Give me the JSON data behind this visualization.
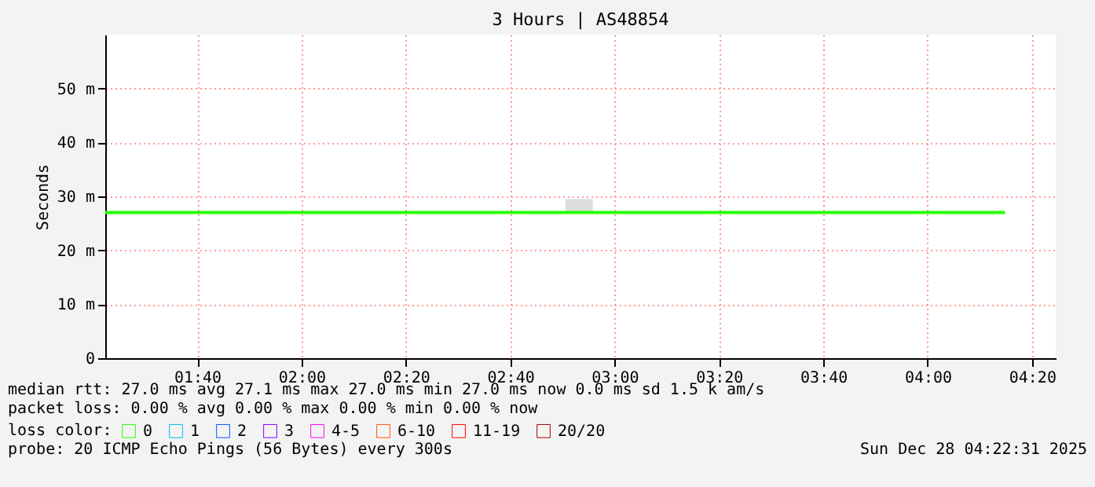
{
  "chart_data": {
    "type": "line",
    "title": "3 Hours | AS48854",
    "ylabel": "Seconds",
    "x": [
      1.373,
      2.843,
      2.93,
      4.247
    ],
    "xlim": [
      1.373,
      4.409
    ],
    "xticks": [
      {
        "value": 1.6667,
        "label": "01:40"
      },
      {
        "value": 2,
        "label": "02:00"
      },
      {
        "value": 2.3333,
        "label": "02:20"
      },
      {
        "value": 2.6667,
        "label": "02:40"
      },
      {
        "value": 3,
        "label": "03:00"
      },
      {
        "value": 3.3333,
        "label": "03:20"
      },
      {
        "value": 3.6667,
        "label": "03:40"
      },
      {
        "value": 4,
        "label": "04:00"
      },
      {
        "value": 4.3333,
        "label": "04:20"
      }
    ],
    "ylim": [
      0,
      60
    ],
    "yticks": [
      0,
      {
        "value": 10,
        "label": "10 m"
      },
      {
        "value": 20,
        "label": "20 m"
      },
      {
        "value": 30,
        "label": "30 m"
      },
      {
        "value": 40,
        "label": "40 m"
      },
      {
        "value": 50,
        "label": "50 m"
      }
    ],
    "legend_title": "loss color:",
    "legend": "bottom",
    "grid": true,
    "marker": "none",
    "line_style": "solid",
    "series": [
      {
        "name": "0",
        "color": "#26ff00",
        "values": [
          27,
          27,
          27,
          27
        ],
        "lower": [
          null,
          27,
          27,
          null
        ],
        "upper": [
          null,
          29.5,
          29.5,
          null
        ]
      },
      {
        "name": "1",
        "color": "#00b8ff",
        "values": [
          null,
          null,
          null,
          null
        ]
      },
      {
        "name": "2",
        "color": "#0059ff",
        "values": [
          null,
          null,
          null,
          null
        ]
      },
      {
        "name": "3",
        "color": "#7e00ff",
        "values": [
          null,
          null,
          null,
          null
        ]
      },
      {
        "name": "4-5",
        "color": "#ff00ff",
        "values": [
          null,
          null,
          null,
          null
        ]
      },
      {
        "name": "6-10",
        "color": "#ff5500",
        "values": [
          null,
          null,
          null,
          null
        ]
      },
      {
        "name": "11-19",
        "color": "#ff0000",
        "values": [
          null,
          null,
          null,
          null
        ]
      },
      {
        "name": "20/20",
        "color": "#a10000",
        "values": [
          null,
          null,
          null,
          null
        ]
      }
    ],
    "annotations": [
      "median rtt:  27.0 ms avg  27.1 ms max  27.0 ms min  27.0 ms now  0.0 ms sd  1.5 k am/s",
      "packet loss: 0.00 % avg  0.00 % max  0.00 % min  0.00 % now",
      "probe:       20 ICMP Echo Pings (56 Bytes) every 300s",
      "Sun Dec 28 04:22:31 2025"
    ]
  }
}
